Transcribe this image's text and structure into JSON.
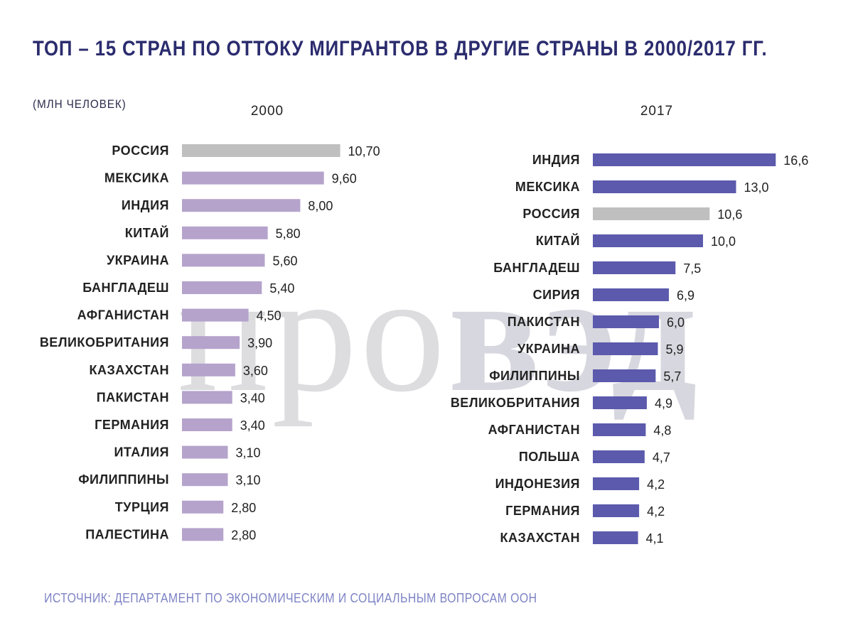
{
  "title": "ТОП – 15 СТРАН ПО ОТТОКУ МИГРАНТОВ В ДРУГИЕ СТРАНЫ В 2000/2017 ГГ.",
  "unit_label": "(МЛН ЧЕЛОВЕК)",
  "source": "ИСТОЧНИК: ДЕПАРТАМЕНТ ПО ЭКОНОМИЧЕСКИМ И СОЦИАЛЬНЫМ ВОПРОСАМ ООН",
  "watermark": {
    "part1": "про",
    "part2": "вэд"
  },
  "colors": {
    "left_bar": "#b5a3cc",
    "right_bar": "#5b5aac",
    "highlight": "#bfbfbf",
    "title": "#2b2c6e",
    "source": "#7d83c4"
  },
  "chart_data": [
    {
      "type": "bar",
      "orientation": "horizontal",
      "title": "2000",
      "highlight": "РОССИЯ",
      "categories": [
        "РОССИЯ",
        "МЕКСИКА",
        "ИНДИЯ",
        "КИТАЙ",
        "УКРАИНА",
        "БАНГЛАДЕШ",
        "АФГАНИСТАН",
        "ВЕЛИКОБРИТАНИЯ",
        "КАЗАХСТАН",
        "ПАКИСТАН",
        "ГЕРМАНИЯ",
        "ИТАЛИЯ",
        "ФИЛИППИНЫ",
        "ТУРЦИЯ",
        "ПАЛЕСТИНА"
      ],
      "values": [
        10.7,
        9.6,
        8.0,
        5.8,
        5.6,
        5.4,
        4.5,
        3.9,
        3.6,
        3.4,
        3.4,
        3.1,
        3.1,
        2.8,
        2.8
      ],
      "labels": [
        "10,70",
        "9,60",
        "8,00",
        "5,80",
        "5,60",
        "5,40",
        "4,50",
        "3,90",
        "3,60",
        "3,40",
        "3,40",
        "3,10",
        "3,10",
        "2,80",
        "2,80"
      ]
    },
    {
      "type": "bar",
      "orientation": "horizontal",
      "title": "2017",
      "highlight": "РОССИЯ",
      "categories": [
        "ИНДИЯ",
        "МЕКСИКА",
        "РОССИЯ",
        "КИТАЙ",
        "БАНГЛАДЕШ",
        "СИРИЯ",
        "ПАКИСТАН",
        "УКРАИНА",
        "ФИЛИППИНЫ",
        "ВЕЛИКОБРИТАНИЯ",
        "АФГАНИСТАН",
        "ПОЛЬША",
        "ИНДОНЕЗИЯ",
        "ГЕРМАНИЯ",
        "КАЗАХСТАН"
      ],
      "values": [
        16.6,
        13.0,
        10.6,
        10.0,
        7.5,
        6.9,
        6.0,
        5.9,
        5.7,
        4.9,
        4.8,
        4.7,
        4.2,
        4.2,
        4.1
      ],
      "labels": [
        "16,6",
        "13,0",
        "10,6",
        "10,0",
        "7,5",
        "6,9",
        "6,0",
        "5,9",
        "5,7",
        "4,9",
        "4,8",
        "4,7",
        "4,2",
        "4,2",
        "4,1"
      ]
    }
  ]
}
